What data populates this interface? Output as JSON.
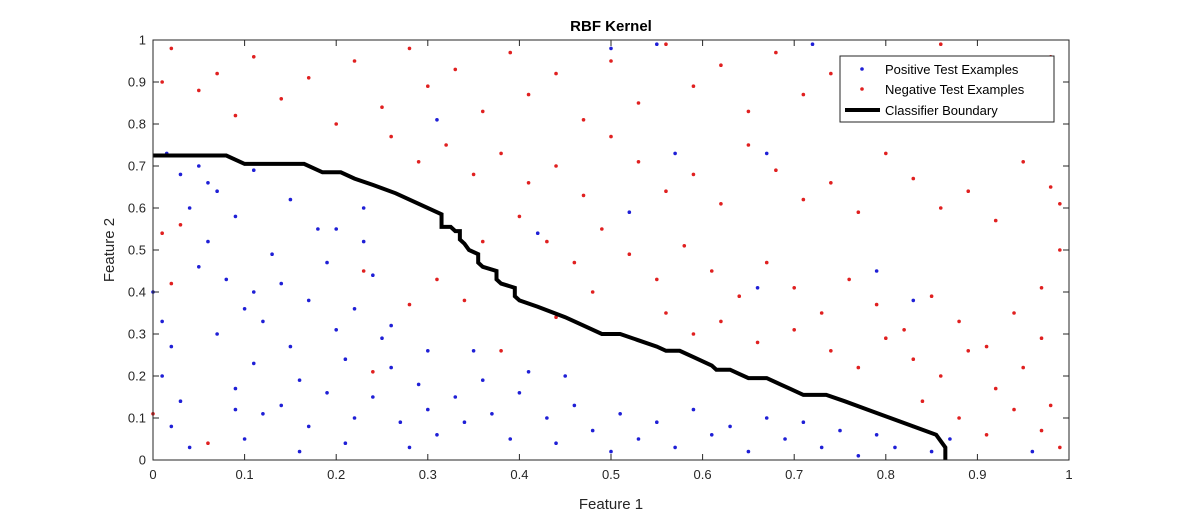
{
  "chart_data": {
    "type": "scatter",
    "title": "RBF Kernel",
    "xlabel": "Feature 1",
    "ylabel": "Feature 2",
    "xlim": [
      0,
      1
    ],
    "ylim": [
      0,
      1
    ],
    "xticks": [
      "0",
      "0.1",
      "0.2",
      "0.3",
      "0.4",
      "0.5",
      "0.6",
      "0.7",
      "0.8",
      "0.9",
      "1"
    ],
    "yticks": [
      "0",
      "0.1",
      "0.2",
      "0.3",
      "0.4",
      "0.5",
      "0.6",
      "0.7",
      "0.8",
      "0.9",
      "1"
    ],
    "grid": false,
    "legend_position": "top-right",
    "colors": {
      "positive": "#1f1fd6",
      "negative": "#e02020",
      "boundary": "#000000"
    },
    "series": [
      {
        "name": "Positive Test Examples",
        "marker": "point",
        "points": [
          [
            0.0,
            0.4
          ],
          [
            0.01,
            0.33
          ],
          [
            0.02,
            0.27
          ],
          [
            0.01,
            0.2
          ],
          [
            0.03,
            0.14
          ],
          [
            0.02,
            0.08
          ],
          [
            0.04,
            0.03
          ],
          [
            0.05,
            0.46
          ],
          [
            0.06,
            0.52
          ],
          [
            0.04,
            0.6
          ],
          [
            0.07,
            0.64
          ],
          [
            0.05,
            0.7
          ],
          [
            0.09,
            0.58
          ],
          [
            0.08,
            0.43
          ],
          [
            0.1,
            0.36
          ],
          [
            0.07,
            0.3
          ],
          [
            0.11,
            0.23
          ],
          [
            0.09,
            0.17
          ],
          [
            0.12,
            0.11
          ],
          [
            0.1,
            0.05
          ],
          [
            0.13,
            0.49
          ],
          [
            0.14,
            0.42
          ],
          [
            0.12,
            0.33
          ],
          [
            0.15,
            0.27
          ],
          [
            0.16,
            0.19
          ],
          [
            0.14,
            0.13
          ],
          [
            0.17,
            0.08
          ],
          [
            0.16,
            0.02
          ],
          [
            0.18,
            0.55
          ],
          [
            0.19,
            0.47
          ],
          [
            0.17,
            0.38
          ],
          [
            0.2,
            0.31
          ],
          [
            0.21,
            0.24
          ],
          [
            0.19,
            0.16
          ],
          [
            0.22,
            0.1
          ],
          [
            0.21,
            0.04
          ],
          [
            0.23,
            0.52
          ],
          [
            0.24,
            0.44
          ],
          [
            0.22,
            0.36
          ],
          [
            0.25,
            0.29
          ],
          [
            0.26,
            0.22
          ],
          [
            0.24,
            0.15
          ],
          [
            0.27,
            0.09
          ],
          [
            0.28,
            0.03
          ],
          [
            0.29,
            0.18
          ],
          [
            0.3,
            0.12
          ],
          [
            0.31,
            0.06
          ],
          [
            0.33,
            0.15
          ],
          [
            0.34,
            0.09
          ],
          [
            0.36,
            0.19
          ],
          [
            0.37,
            0.11
          ],
          [
            0.39,
            0.05
          ],
          [
            0.4,
            0.16
          ],
          [
            0.41,
            0.21
          ],
          [
            0.43,
            0.1
          ],
          [
            0.44,
            0.04
          ],
          [
            0.46,
            0.13
          ],
          [
            0.48,
            0.07
          ],
          [
            0.5,
            0.02
          ],
          [
            0.51,
            0.11
          ],
          [
            0.53,
            0.05
          ],
          [
            0.55,
            0.09
          ],
          [
            0.57,
            0.03
          ],
          [
            0.59,
            0.12
          ],
          [
            0.61,
            0.06
          ],
          [
            0.63,
            0.08
          ],
          [
            0.65,
            0.02
          ],
          [
            0.67,
            0.1
          ],
          [
            0.69,
            0.05
          ],
          [
            0.71,
            0.09
          ],
          [
            0.73,
            0.03
          ],
          [
            0.75,
            0.07
          ],
          [
            0.77,
            0.01
          ],
          [
            0.79,
            0.06
          ],
          [
            0.81,
            0.03
          ],
          [
            0.83,
            0.08
          ],
          [
            0.85,
            0.02
          ],
          [
            0.87,
            0.05
          ],
          [
            0.015,
            0.73
          ],
          [
            0.03,
            0.68
          ],
          [
            0.06,
            0.66
          ],
          [
            0.11,
            0.69
          ],
          [
            0.2,
            0.55
          ],
          [
            0.15,
            0.62
          ],
          [
            0.23,
            0.6
          ],
          [
            0.52,
            0.59
          ],
          [
            0.42,
            0.54
          ],
          [
            0.55,
            0.99
          ],
          [
            0.72,
            0.99
          ],
          [
            0.31,
            0.81
          ],
          [
            0.57,
            0.73
          ],
          [
            0.67,
            0.73
          ],
          [
            0.5,
            0.98
          ],
          [
            0.83,
            0.38
          ],
          [
            0.66,
            0.41
          ],
          [
            0.79,
            0.45
          ],
          [
            0.96,
            0.02
          ],
          [
            0.09,
            0.12
          ],
          [
            0.11,
            0.4
          ],
          [
            0.26,
            0.32
          ],
          [
            0.35,
            0.26
          ],
          [
            0.45,
            0.2
          ],
          [
            0.3,
            0.26
          ]
        ]
      },
      {
        "name": "Negative Test Examples",
        "marker": "point",
        "points": [
          [
            0.01,
            0.9
          ],
          [
            0.02,
            0.98
          ],
          [
            0.05,
            0.88
          ],
          [
            0.07,
            0.92
          ],
          [
            0.09,
            0.82
          ],
          [
            0.11,
            0.96
          ],
          [
            0.14,
            0.86
          ],
          [
            0.17,
            0.91
          ],
          [
            0.2,
            0.8
          ],
          [
            0.22,
            0.95
          ],
          [
            0.25,
            0.84
          ],
          [
            0.28,
            0.98
          ],
          [
            0.3,
            0.89
          ],
          [
            0.33,
            0.93
          ],
          [
            0.36,
            0.83
          ],
          [
            0.39,
            0.97
          ],
          [
            0.41,
            0.87
          ],
          [
            0.44,
            0.92
          ],
          [
            0.47,
            0.81
          ],
          [
            0.5,
            0.95
          ],
          [
            0.53,
            0.85
          ],
          [
            0.56,
            0.99
          ],
          [
            0.59,
            0.89
          ],
          [
            0.62,
            0.94
          ],
          [
            0.65,
            0.83
          ],
          [
            0.68,
            0.97
          ],
          [
            0.71,
            0.87
          ],
          [
            0.74,
            0.92
          ],
          [
            0.77,
            0.81
          ],
          [
            0.8,
            0.95
          ],
          [
            0.83,
            0.85
          ],
          [
            0.86,
            0.99
          ],
          [
            0.89,
            0.88
          ],
          [
            0.92,
            0.93
          ],
          [
            0.95,
            0.82
          ],
          [
            0.98,
            0.96
          ],
          [
            0.26,
            0.77
          ],
          [
            0.29,
            0.71
          ],
          [
            0.32,
            0.75
          ],
          [
            0.35,
            0.68
          ],
          [
            0.38,
            0.73
          ],
          [
            0.41,
            0.66
          ],
          [
            0.44,
            0.7
          ],
          [
            0.47,
            0.63
          ],
          [
            0.5,
            0.77
          ],
          [
            0.53,
            0.71
          ],
          [
            0.56,
            0.64
          ],
          [
            0.59,
            0.68
          ],
          [
            0.62,
            0.61
          ],
          [
            0.65,
            0.75
          ],
          [
            0.68,
            0.69
          ],
          [
            0.71,
            0.62
          ],
          [
            0.74,
            0.66
          ],
          [
            0.77,
            0.59
          ],
          [
            0.8,
            0.73
          ],
          [
            0.83,
            0.67
          ],
          [
            0.86,
            0.6
          ],
          [
            0.89,
            0.64
          ],
          [
            0.92,
            0.57
          ],
          [
            0.95,
            0.71
          ],
          [
            0.98,
            0.65
          ],
          [
            0.4,
            0.58
          ],
          [
            0.43,
            0.52
          ],
          [
            0.46,
            0.47
          ],
          [
            0.49,
            0.55
          ],
          [
            0.52,
            0.49
          ],
          [
            0.55,
            0.43
          ],
          [
            0.58,
            0.51
          ],
          [
            0.61,
            0.45
          ],
          [
            0.64,
            0.39
          ],
          [
            0.67,
            0.47
          ],
          [
            0.7,
            0.41
          ],
          [
            0.73,
            0.35
          ],
          [
            0.76,
            0.43
          ],
          [
            0.79,
            0.37
          ],
          [
            0.82,
            0.31
          ],
          [
            0.85,
            0.39
          ],
          [
            0.88,
            0.33
          ],
          [
            0.91,
            0.27
          ],
          [
            0.94,
            0.35
          ],
          [
            0.97,
            0.29
          ],
          [
            0.56,
            0.35
          ],
          [
            0.59,
            0.3
          ],
          [
            0.62,
            0.33
          ],
          [
            0.66,
            0.28
          ],
          [
            0.7,
            0.31
          ],
          [
            0.74,
            0.26
          ],
          [
            0.77,
            0.22
          ],
          [
            0.8,
            0.29
          ],
          [
            0.83,
            0.24
          ],
          [
            0.86,
            0.2
          ],
          [
            0.89,
            0.26
          ],
          [
            0.92,
            0.17
          ],
          [
            0.95,
            0.22
          ],
          [
            0.98,
            0.13
          ],
          [
            0.84,
            0.14
          ],
          [
            0.88,
            0.1
          ],
          [
            0.91,
            0.06
          ],
          [
            0.94,
            0.12
          ],
          [
            0.97,
            0.07
          ],
          [
            0.99,
            0.03
          ],
          [
            0.01,
            0.54
          ],
          [
            0.02,
            0.42
          ],
          [
            0.0,
            0.11
          ],
          [
            0.03,
            0.56
          ],
          [
            0.06,
            0.04
          ],
          [
            0.23,
            0.45
          ],
          [
            0.24,
            0.21
          ],
          [
            0.28,
            0.37
          ],
          [
            0.31,
            0.43
          ],
          [
            0.36,
            0.52
          ],
          [
            0.44,
            0.34
          ],
          [
            0.38,
            0.26
          ],
          [
            0.48,
            0.4
          ],
          [
            0.34,
            0.38
          ],
          [
            0.99,
            0.5
          ],
          [
            0.97,
            0.41
          ],
          [
            0.99,
            0.61
          ]
        ]
      },
      {
        "name": "Classifier Boundary",
        "marker": "line",
        "points": [
          [
            0.0,
            0.725
          ],
          [
            0.08,
            0.725
          ],
          [
            0.1,
            0.705
          ],
          [
            0.165,
            0.705
          ],
          [
            0.185,
            0.685
          ],
          [
            0.205,
            0.685
          ],
          [
            0.22,
            0.67
          ],
          [
            0.24,
            0.655
          ],
          [
            0.265,
            0.635
          ],
          [
            0.29,
            0.61
          ],
          [
            0.315,
            0.585
          ],
          [
            0.315,
            0.555
          ],
          [
            0.325,
            0.555
          ],
          [
            0.33,
            0.545
          ],
          [
            0.335,
            0.545
          ],
          [
            0.335,
            0.525
          ],
          [
            0.34,
            0.515
          ],
          [
            0.345,
            0.5
          ],
          [
            0.355,
            0.49
          ],
          [
            0.355,
            0.47
          ],
          [
            0.36,
            0.46
          ],
          [
            0.375,
            0.45
          ],
          [
            0.375,
            0.43
          ],
          [
            0.38,
            0.42
          ],
          [
            0.395,
            0.41
          ],
          [
            0.395,
            0.39
          ],
          [
            0.4,
            0.38
          ],
          [
            0.42,
            0.365
          ],
          [
            0.45,
            0.34
          ],
          [
            0.47,
            0.32
          ],
          [
            0.49,
            0.3
          ],
          [
            0.51,
            0.3
          ],
          [
            0.53,
            0.285
          ],
          [
            0.55,
            0.27
          ],
          [
            0.56,
            0.26
          ],
          [
            0.575,
            0.26
          ],
          [
            0.59,
            0.245
          ],
          [
            0.61,
            0.225
          ],
          [
            0.615,
            0.215
          ],
          [
            0.63,
            0.215
          ],
          [
            0.64,
            0.205
          ],
          [
            0.65,
            0.195
          ],
          [
            0.67,
            0.195
          ],
          [
            0.685,
            0.18
          ],
          [
            0.695,
            0.17
          ],
          [
            0.71,
            0.155
          ],
          [
            0.735,
            0.155
          ],
          [
            0.755,
            0.14
          ],
          [
            0.78,
            0.12
          ],
          [
            0.805,
            0.1
          ],
          [
            0.83,
            0.08
          ],
          [
            0.855,
            0.06
          ],
          [
            0.865,
            0.03
          ],
          [
            0.865,
            0.0
          ]
        ]
      }
    ]
  }
}
